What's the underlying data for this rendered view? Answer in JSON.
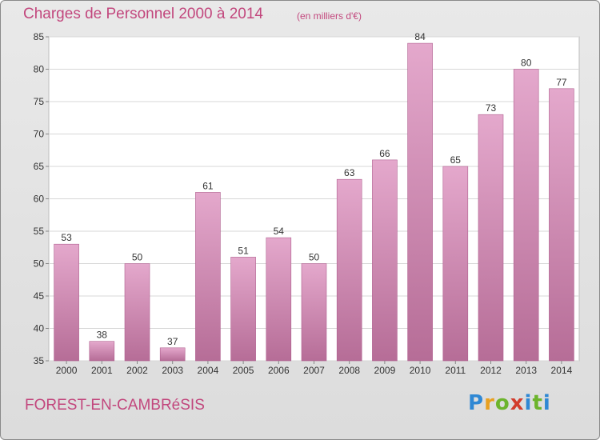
{
  "header": {
    "title": "Charges de Personnel 2000 à 2014",
    "subtitle": "(en milliers d'€)"
  },
  "footer": {
    "commune": "FOREST-EN-CAMBRéSIS",
    "logo": [
      "P",
      "r",
      "o",
      "x",
      "i",
      "t",
      "i"
    ]
  },
  "colors": {
    "title": "#c2477d",
    "bar_top": "#e4a8cc",
    "bar_bottom": "#b66d97",
    "bar_edge": "#b0608f"
  },
  "chart_data": {
    "type": "bar",
    "title": "Charges de Personnel 2000 à 2014",
    "subtitle": "(en milliers d'€)",
    "xlabel": "",
    "ylabel": "",
    "categories": [
      "2000",
      "2001",
      "2002",
      "2003",
      "2004",
      "2005",
      "2006",
      "2007",
      "2008",
      "2009",
      "2010",
      "2011",
      "2012",
      "2013",
      "2014"
    ],
    "values": [
      53,
      38,
      50,
      37,
      61,
      51,
      54,
      50,
      63,
      66,
      84,
      65,
      73,
      80,
      77
    ],
    "ylim": [
      35,
      85
    ],
    "yticks": [
      35,
      40,
      45,
      50,
      55,
      60,
      65,
      70,
      75,
      80,
      85
    ],
    "grid": true,
    "data_labels": true
  }
}
